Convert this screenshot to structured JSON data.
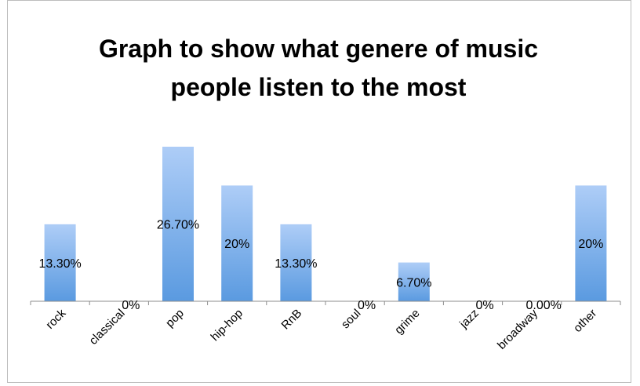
{
  "chart_data": {
    "type": "bar",
    "title_lines": [
      "Graph to show what genere of music",
      "people listen to the most"
    ],
    "categories": [
      "rock",
      "classical",
      "pop",
      "hip-hop",
      "RnB",
      "soul",
      "grime",
      "jazz",
      "broadway",
      "other"
    ],
    "values": [
      13.3,
      0,
      26.7,
      20,
      13.3,
      0,
      6.7,
      0,
      0,
      20
    ],
    "data_labels": [
      "13.30%",
      "0%",
      "26.70%",
      "20%",
      "13.30%",
      "0%",
      "6.70%",
      "0%",
      "0.00%",
      "20%"
    ],
    "ylim": [
      0,
      30
    ],
    "grid": false,
    "legend": "none",
    "colors": {
      "bar_top": "#aecdf7",
      "bar_bottom": "#5a9ae0",
      "axis": "#8c8c8c",
      "border": "#bdbdbd"
    }
  }
}
